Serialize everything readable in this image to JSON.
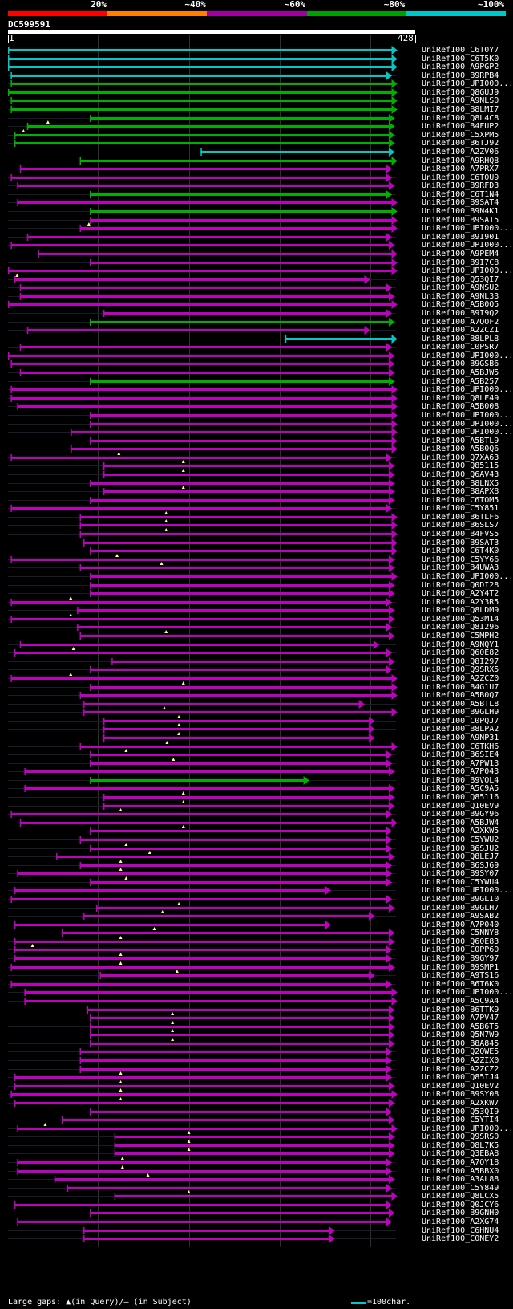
{
  "legend": {
    "segments": [
      {
        "label": "20%",
        "color": "#ff0000"
      },
      {
        "label": "~40%",
        "color": "#ff8000"
      },
      {
        "label": "~60%",
        "color": "#a000a0"
      },
      {
        "label": "~80%",
        "color": "#00a000"
      },
      {
        "label": "~100%",
        "color": "#00c8c8"
      }
    ]
  },
  "query": {
    "id": "DC599591",
    "start": "1",
    "end": "428",
    "length": 428
  },
  "colors": {
    "cyan": "#00c8c8",
    "green": "#00b000",
    "purple": "#c000c0",
    "grid": "#303030"
  },
  "hits": [
    {
      "name": "UniRef100_C6T0Y7",
      "c": "cyan",
      "s": 1,
      "e": 428
    },
    {
      "name": "UniRef100_C6T5K0",
      "c": "cyan",
      "s": 1,
      "e": 428
    },
    {
      "name": "UniRef100_A9PGP2",
      "c": "cyan",
      "s": 1,
      "e": 428
    },
    {
      "name": "UniRef100_B9RPB4",
      "c": "cyan",
      "s": 4,
      "e": 422
    },
    {
      "name": "UniRef100_UPI000...",
      "c": "green",
      "s": 4,
      "e": 428
    },
    {
      "name": "UniRef100_Q8GUJ9",
      "c": "green",
      "s": 1,
      "e": 428
    },
    {
      "name": "UniRef100_A9NLS0",
      "c": "green",
      "s": 4,
      "e": 428
    },
    {
      "name": "UniRef100_B8LMI7",
      "c": "green",
      "s": 4,
      "e": 428
    },
    {
      "name": "UniRef100_Q8L4C8",
      "c": "green",
      "s": 91,
      "e": 425
    },
    {
      "name": "UniRef100_B4FUP2",
      "c": "green",
      "s": 22,
      "e": 425,
      "gap": 45
    },
    {
      "name": "UniRef100_C5XPM5",
      "c": "green",
      "s": 8,
      "e": 425,
      "gap": 18
    },
    {
      "name": "UniRef100_B6TJ92",
      "c": "green",
      "s": 8,
      "e": 425
    },
    {
      "name": "UniRef100_A2ZV06",
      "c": "cyan",
      "s": 213,
      "e": 425
    },
    {
      "name": "UniRef100_A9RHQ8",
      "c": "green",
      "s": 80,
      "e": 428
    },
    {
      "name": "UniRef100_A7PRX7",
      "c": "purple",
      "s": 14,
      "e": 422
    },
    {
      "name": "UniRef100_C6TOU9",
      "c": "purple",
      "s": 4,
      "e": 422
    },
    {
      "name": "UniRef100_B9RFD3",
      "c": "purple",
      "s": 11,
      "e": 425
    },
    {
      "name": "UniRef100_C6T1N4",
      "c": "green",
      "s": 91,
      "e": 422
    },
    {
      "name": "UniRef100_B9SAT4",
      "c": "purple",
      "s": 11,
      "e": 428
    },
    {
      "name": "UniRef100_B9N4K1",
      "c": "green",
      "s": 91,
      "e": 428
    },
    {
      "name": "UniRef100_B9SAT5",
      "c": "purple",
      "s": 91,
      "e": 428
    },
    {
      "name": "UniRef100_UPI000...",
      "c": "purple",
      "s": 80,
      "e": 428,
      "gap": 90
    },
    {
      "name": "UniRef100_B9I901",
      "c": "purple",
      "s": 22,
      "e": 422
    },
    {
      "name": "UniRef100_UPI000...",
      "c": "purple",
      "s": 4,
      "e": 425
    },
    {
      "name": "UniRef100_A9PEM4",
      "c": "purple",
      "s": 34,
      "e": 428
    },
    {
      "name": "UniRef100_B9I7C8",
      "c": "purple",
      "s": 91,
      "e": 428
    },
    {
      "name": "UniRef100_UPI000...",
      "c": "purple",
      "s": 1,
      "e": 428
    },
    {
      "name": "UniRef100_Q53QI7",
      "c": "purple",
      "s": 8,
      "e": 398,
      "gap": 11
    },
    {
      "name": "UniRef100_A9NSU2",
      "c": "purple",
      "s": 14,
      "e": 422
    },
    {
      "name": "UniRef100_A9NL33",
      "c": "purple",
      "s": 14,
      "e": 425
    },
    {
      "name": "UniRef100_A5B0Q5",
      "c": "purple",
      "s": 1,
      "e": 428
    },
    {
      "name": "UniRef100_B9I9Q2",
      "c": "purple",
      "s": 106,
      "e": 422
    },
    {
      "name": "UniRef100_A7QOF2",
      "c": "green",
      "s": 91,
      "e": 425
    },
    {
      "name": "UniRef100_A2ZCZ1",
      "c": "purple",
      "s": 22,
      "e": 398
    },
    {
      "name": "UniRef100_B8LPL8",
      "c": "cyan",
      "s": 306,
      "e": 428
    },
    {
      "name": "UniRef100_C0PSR7",
      "c": "purple",
      "s": 14,
      "e": 422
    },
    {
      "name": "UniRef100_UPI000...",
      "c": "purple",
      "s": 1,
      "e": 425
    },
    {
      "name": "UniRef100_B9GSB6",
      "c": "purple",
      "s": 4,
      "e": 425
    },
    {
      "name": "UniRef100_A5BJW5",
      "c": "purple",
      "s": 14,
      "e": 425
    },
    {
      "name": "UniRef100_A5B257",
      "c": "green",
      "s": 91,
      "e": 425
    },
    {
      "name": "UniRef100_UPI000...",
      "c": "purple",
      "s": 4,
      "e": 428
    },
    {
      "name": "UniRef100_Q8LE49",
      "c": "purple",
      "s": 4,
      "e": 428
    },
    {
      "name": "UniRef100_A5B008",
      "c": "purple",
      "s": 11,
      "e": 428
    },
    {
      "name": "UniRef100_UPI000...",
      "c": "purple",
      "s": 91,
      "e": 428
    },
    {
      "name": "UniRef100_UPI000...",
      "c": "purple",
      "s": 91,
      "e": 428
    },
    {
      "name": "UniRef100_UPI000...",
      "c": "purple",
      "s": 70,
      "e": 428
    },
    {
      "name": "UniRef100_A5BTL9",
      "c": "purple",
      "s": 91,
      "e": 428
    },
    {
      "name": "UniRef100_A5B0Q6",
      "c": "purple",
      "s": 70,
      "e": 428
    },
    {
      "name": "UniRef100_Q7XA63",
      "c": "purple",
      "s": 4,
      "e": 422,
      "gap": 123
    },
    {
      "name": "UniRef100_Q85115",
      "c": "purple",
      "s": 106,
      "e": 425,
      "gap": 194
    },
    {
      "name": "UniRef100_Q6AV43",
      "c": "purple",
      "s": 106,
      "e": 425,
      "gap": 194
    },
    {
      "name": "UniRef100_B8LNX5",
      "c": "purple",
      "s": 91,
      "e": 425
    },
    {
      "name": "UniRef100_B8APX8",
      "c": "purple",
      "s": 106,
      "e": 425,
      "gap": 194
    },
    {
      "name": "UniRef100_C6TOM5",
      "c": "purple",
      "s": 91,
      "e": 425
    },
    {
      "name": "UniRef100_C5Y851",
      "c": "purple",
      "s": 4,
      "e": 422
    },
    {
      "name": "UniRef100_B6TLF6",
      "c": "purple",
      "s": 80,
      "e": 428,
      "gap": 175
    },
    {
      "name": "UniRef100_B6SLS7",
      "c": "purple",
      "s": 80,
      "e": 428,
      "gap": 175
    },
    {
      "name": "UniRef100_B4FVS5",
      "c": "purple",
      "s": 80,
      "e": 428,
      "gap": 175
    },
    {
      "name": "UniRef100_B9SAT3",
      "c": "purple",
      "s": 84,
      "e": 428
    },
    {
      "name": "UniRef100_C6T4K0",
      "c": "purple",
      "s": 91,
      "e": 428
    },
    {
      "name": "UniRef100_C5YY66",
      "c": "purple",
      "s": 4,
      "e": 425,
      "gap": 121
    },
    {
      "name": "UniRef100_B4UWA3",
      "c": "purple",
      "s": 80,
      "e": 425,
      "gap": 170
    },
    {
      "name": "UniRef100_UPI000...",
      "c": "purple",
      "s": 91,
      "e": 428
    },
    {
      "name": "UniRef100_Q0DI28",
      "c": "purple",
      "s": 91,
      "e": 425
    },
    {
      "name": "UniRef100_A2Y4T2",
      "c": "purple",
      "s": 91,
      "e": 425
    },
    {
      "name": "UniRef100_A2Y3R5",
      "c": "purple",
      "s": 4,
      "e": 422,
      "gap": 70
    },
    {
      "name": "UniRef100_Q8LDM9",
      "c": "purple",
      "s": 77,
      "e": 425
    },
    {
      "name": "UniRef100_Q53M14",
      "c": "purple",
      "s": 4,
      "e": 425,
      "gap": 70
    },
    {
      "name": "UniRef100_Q8I296",
      "c": "purple",
      "s": 77,
      "e": 422
    },
    {
      "name": "UniRef100_C5MPH2",
      "c": "purple",
      "s": 80,
      "e": 425,
      "gap": 175
    },
    {
      "name": "UniRef100_A9NQY1",
      "c": "purple",
      "s": 14,
      "e": 408
    },
    {
      "name": "UniRef100_Q60E82",
      "c": "purple",
      "s": 8,
      "e": 422,
      "gap": 73
    },
    {
      "name": "UniRef100_Q8I297",
      "c": "purple",
      "s": 115,
      "e": 425
    },
    {
      "name": "UniRef100_Q9SRX5",
      "c": "purple",
      "s": 91,
      "e": 422
    },
    {
      "name": "UniRef100_A2ZCZ0",
      "c": "purple",
      "s": 4,
      "e": 428,
      "gap": 70
    },
    {
      "name": "UniRef100_B4G1U7",
      "c": "purple",
      "s": 91,
      "e": 428,
      "gap": 194
    },
    {
      "name": "UniRef100_A5B0Q7",
      "c": "purple",
      "s": 80,
      "e": 428
    },
    {
      "name": "UniRef100_A5BTL8",
      "c": "purple",
      "s": 84,
      "e": 392
    },
    {
      "name": "UniRef100_B9GLH9",
      "c": "purple",
      "s": 84,
      "e": 428,
      "gap": 173
    },
    {
      "name": "UniRef100_C0PQJ7",
      "c": "purple",
      "s": 106,
      "e": 403,
      "gap": 189
    },
    {
      "name": "UniRef100_B8LPA2",
      "c": "purple",
      "s": 106,
      "e": 403,
      "gap": 189
    },
    {
      "name": "UniRef100_A9NP31",
      "c": "purple",
      "s": 106,
      "e": 403,
      "gap": 189
    },
    {
      "name": "UniRef100_C6TKH6",
      "c": "purple",
      "s": 80,
      "e": 428,
      "gap": 176
    },
    {
      "name": "UniRef100_B6SIE4",
      "c": "purple",
      "s": 91,
      "e": 422,
      "gap": 131
    },
    {
      "name": "UniRef100_A7PW13",
      "c": "purple",
      "s": 91,
      "e": 422,
      "gap": 183
    },
    {
      "name": "UniRef100_A7P043",
      "c": "purple",
      "s": 19,
      "e": 425
    },
    {
      "name": "UniRef100_B9VOL4",
      "c": "green",
      "s": 91,
      "e": 331
    },
    {
      "name": "UniRef100_A5C9A5",
      "c": "purple",
      "s": 19,
      "e": 425
    },
    {
      "name": "UniRef100_Q85116",
      "c": "purple",
      "s": 106,
      "e": 425,
      "gap": 194
    },
    {
      "name": "UniRef100_Q10EV9",
      "c": "purple",
      "s": 106,
      "e": 425,
      "gap": 194
    },
    {
      "name": "UniRef100_B9GY96",
      "c": "purple",
      "s": 4,
      "e": 422,
      "gap": 125
    },
    {
      "name": "UniRef100_A5BJW4",
      "c": "purple",
      "s": 14,
      "e": 428
    },
    {
      "name": "UniRef100_A2XKW5",
      "c": "purple",
      "s": 91,
      "e": 422,
      "gap": 194
    },
    {
      "name": "UniRef100_C5YWU2",
      "c": "purple",
      "s": 80,
      "e": 422
    },
    {
      "name": "UniRef100_B6SJU2",
      "c": "purple",
      "s": 91,
      "e": 422,
      "gap": 131
    },
    {
      "name": "UniRef100_Q8LEJ7",
      "c": "purple",
      "s": 54,
      "e": 425,
      "gap": 157
    },
    {
      "name": "UniRef100_B6SJ69",
      "c": "purple",
      "s": 80,
      "e": 422,
      "gap": 125
    },
    {
      "name": "UniRef100_B9SY07",
      "c": "purple",
      "s": 11,
      "e": 422,
      "gap": 125
    },
    {
      "name": "UniRef100_C5YWU4",
      "c": "purple",
      "s": 91,
      "e": 422,
      "gap": 131
    },
    {
      "name": "UniRef100_UPI000...",
      "c": "purple",
      "s": 8,
      "e": 355
    },
    {
      "name": "UniRef100_B9GLI0",
      "c": "purple",
      "s": 4,
      "e": 422
    },
    {
      "name": "UniRef100_B9GLH7",
      "c": "purple",
      "s": 98,
      "e": 425,
      "gap": 189
    },
    {
      "name": "UniRef100_A9SAB2",
      "c": "purple",
      "s": 84,
      "e": 403,
      "gap": 171
    },
    {
      "name": "UniRef100_A7P040",
      "c": "purple",
      "s": 8,
      "e": 355
    },
    {
      "name": "UniRef100_C5NNY8",
      "c": "purple",
      "s": 60,
      "e": 425,
      "gap": 162
    },
    {
      "name": "UniRef100_Q60E83",
      "c": "purple",
      "s": 8,
      "e": 425,
      "gap": 125
    },
    {
      "name": "UniRef100_C0PP60",
      "c": "purple",
      "s": 8,
      "e": 422,
      "gap": 28
    },
    {
      "name": "UniRef100_B9GY97",
      "c": "purple",
      "s": 8,
      "e": 422,
      "gap": 125
    },
    {
      "name": "UniRef100_B9SMP1",
      "c": "purple",
      "s": 4,
      "e": 425,
      "gap": 125
    },
    {
      "name": "UniRef100_A9TS16",
      "c": "purple",
      "s": 102,
      "e": 403,
      "gap": 187
    },
    {
      "name": "UniRef100_B6T6K0",
      "c": "purple",
      "s": 4,
      "e": 422
    },
    {
      "name": "UniRef100_UPI000...",
      "c": "purple",
      "s": 19,
      "e": 428
    },
    {
      "name": "UniRef100_A5C9A4",
      "c": "purple",
      "s": 19,
      "e": 428
    },
    {
      "name": "UniRef100_B6TTK9",
      "c": "purple",
      "s": 88,
      "e": 425
    },
    {
      "name": "UniRef100_A7PV47",
      "c": "purple",
      "s": 91,
      "e": 425,
      "gap": 182
    },
    {
      "name": "UniRef100_A5B6T5",
      "c": "purple",
      "s": 91,
      "e": 425,
      "gap": 182
    },
    {
      "name": "UniRef100_Q5N7W9",
      "c": "purple",
      "s": 91,
      "e": 425,
      "gap": 182
    },
    {
      "name": "UniRef100_B8A845",
      "c": "purple",
      "s": 91,
      "e": 425,
      "gap": 182
    },
    {
      "name": "UniRef100_Q2QWE5",
      "c": "purple",
      "s": 80,
      "e": 422
    },
    {
      "name": "UniRef100_A2ZIX0",
      "c": "purple",
      "s": 80,
      "e": 422
    },
    {
      "name": "UniRef100_A2ZCZ2",
      "c": "purple",
      "s": 80,
      "e": 422
    },
    {
      "name": "UniRef100_Q85IJ4",
      "c": "purple",
      "s": 8,
      "e": 422,
      "gap": 125
    },
    {
      "name": "UniRef100_Q10EV2",
      "c": "purple",
      "s": 8,
      "e": 425,
      "gap": 125
    },
    {
      "name": "UniRef100_B9SY08",
      "c": "purple",
      "s": 4,
      "e": 428,
      "gap": 125
    },
    {
      "name": "UniRef100_A2XKW7",
      "c": "purple",
      "s": 8,
      "e": 425,
      "gap": 125
    },
    {
      "name": "UniRef100_Q53QI9",
      "c": "purple",
      "s": 91,
      "e": 422
    },
    {
      "name": "UniRef100_C5YTI4",
      "c": "purple",
      "s": 60,
      "e": 425
    },
    {
      "name": "UniRef100_UPI000...",
      "c": "purple",
      "s": 11,
      "e": 428,
      "gap": 42
    },
    {
      "name": "UniRef100_Q9SRS0",
      "c": "purple",
      "s": 118,
      "e": 425,
      "gap": 200
    },
    {
      "name": "UniRef100_Q8L7K5",
      "c": "purple",
      "s": 118,
      "e": 425,
      "gap": 200
    },
    {
      "name": "UniRef100_Q3EBA8",
      "c": "purple",
      "s": 118,
      "e": 425,
      "gap": 200
    },
    {
      "name": "UniRef100_A7QY18",
      "c": "purple",
      "s": 11,
      "e": 422,
      "gap": 127
    },
    {
      "name": "UniRef100_A5BBX0",
      "c": "purple",
      "s": 11,
      "e": 422,
      "gap": 127
    },
    {
      "name": "UniRef100_A3AL88",
      "c": "purple",
      "s": 52,
      "e": 425,
      "gap": 155
    },
    {
      "name": "UniRef100_C5Y849",
      "c": "purple",
      "s": 66,
      "e": 422
    },
    {
      "name": "UniRef100_Q8LCX5",
      "c": "purple",
      "s": 118,
      "e": 428,
      "gap": 200
    },
    {
      "name": "UniRef100_Q0JCY6",
      "c": "purple",
      "s": 8,
      "e": 422
    },
    {
      "name": "UniRef100_B9GNH0",
      "c": "purple",
      "s": 91,
      "e": 425
    },
    {
      "name": "UniRef100_A2XG74",
      "c": "purple",
      "s": 11,
      "e": 422
    },
    {
      "name": "UniRef100_C6HNU4",
      "c": "purple",
      "s": 84,
      "e": 359
    },
    {
      "name": "UniRef100_C0NEY2",
      "c": "purple",
      "s": 84,
      "e": 359
    }
  ],
  "footer": {
    "gaps_text": "Large gaps: ▲(in Query)/– (in Subject)",
    "scale_text": "=100char."
  }
}
